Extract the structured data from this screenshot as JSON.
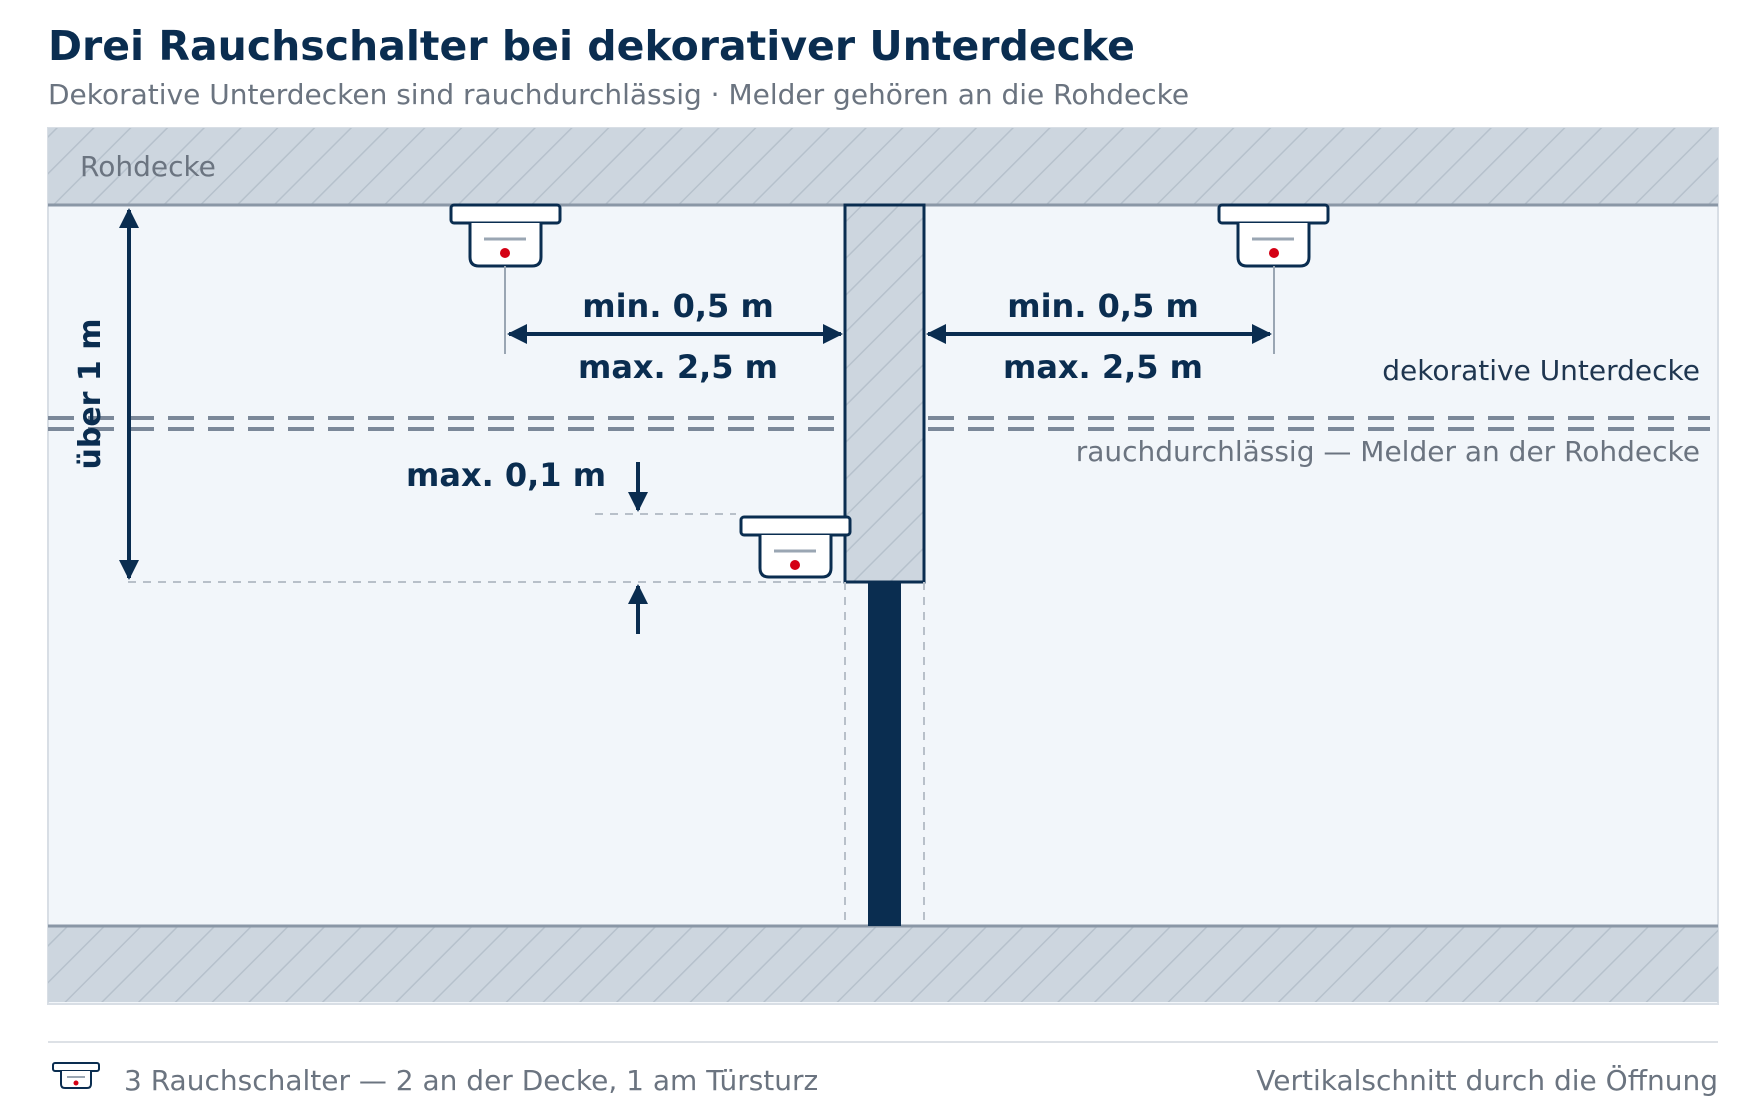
{
  "header": {
    "title": "Drei Rauchschalter bei dekorativer Unterdecke",
    "subtitle": "Dekorative Unterdecken sind rauchdurchlässig · Melder gehören an die Rohdecke"
  },
  "diagram": {
    "rohdecke_label": "Rohdecke",
    "left_dim_min": "min. 0,5 m",
    "left_dim_max": "max. 2,5 m",
    "right_dim_min": "min. 0,5 m",
    "right_dim_max": "max. 2,5 m",
    "lintel_height_label": "über 1 m",
    "lintel_offset_label": "max. 0,1 m",
    "suspended_ceiling_label": "dekorative Unterdecke",
    "suspended_ceiling_note": "rauchdurchlässig — Melder an der Rohdecke"
  },
  "footer": {
    "legend_text": "3 Rauchschalter — 2 an der Decke, 1 am Türsturz",
    "caption": "Vertikalschnitt durch die Öffnung"
  },
  "colors": {
    "navy": "#0a2d50",
    "hatch_fill": "#cdd6df",
    "room_bg": "#f2f6fa",
    "dashed_ceiling": "#7b8899",
    "detector_led": "#d40014"
  }
}
